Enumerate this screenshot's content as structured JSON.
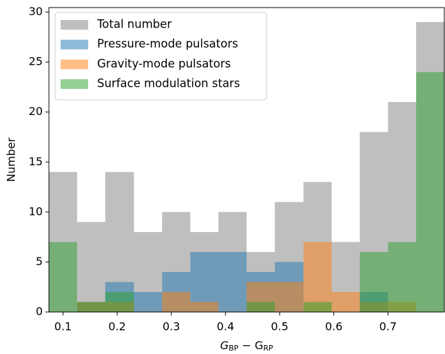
{
  "chart_data": {
    "type": "histogram",
    "ylabel": "Number",
    "xlabel": [
      {
        "text": "G",
        "sub": "BP"
      },
      {
        "text": " − G",
        "sub": "RP"
      }
    ],
    "bins": [
      0.074,
      0.126,
      0.178,
      0.231,
      0.283,
      0.335,
      0.387,
      0.439,
      0.491,
      0.544,
      0.596,
      0.648,
      0.7,
      0.752,
      0.804
    ],
    "series": [
      {
        "name": "Total number",
        "color": "#808080",
        "values": [
          14,
          9,
          14,
          8,
          10,
          8,
          10,
          6,
          11,
          13,
          7,
          18,
          21,
          29
        ]
      },
      {
        "name": "Pressure-mode pulsators",
        "color": "#1f77b4",
        "values": [
          0,
          1,
          3,
          2,
          4,
          6,
          6,
          4,
          5,
          0,
          0,
          2,
          0,
          0
        ]
      },
      {
        "name": "Gravity-mode pulsators",
        "color": "#ff7f0e",
        "values": [
          0,
          1,
          1,
          0,
          2,
          1,
          0,
          3,
          3,
          7,
          2,
          1,
          1,
          0
        ]
      },
      {
        "name": "Surface modulation stars",
        "color": "#2ca02c",
        "values": [
          7,
          1,
          2,
          0,
          0,
          0,
          0,
          1,
          0,
          1,
          0,
          6,
          7,
          24
        ]
      }
    ],
    "alpha": 0.5,
    "xlim": [
      0.074,
      0.804
    ],
    "xticks": [
      0.1,
      0.2,
      0.3,
      0.4,
      0.5,
      0.6,
      0.7
    ],
    "ylim": [
      0,
      30.45
    ],
    "yticks": [
      0,
      5,
      10,
      15,
      20,
      25,
      30
    ],
    "legend": "upper left"
  }
}
